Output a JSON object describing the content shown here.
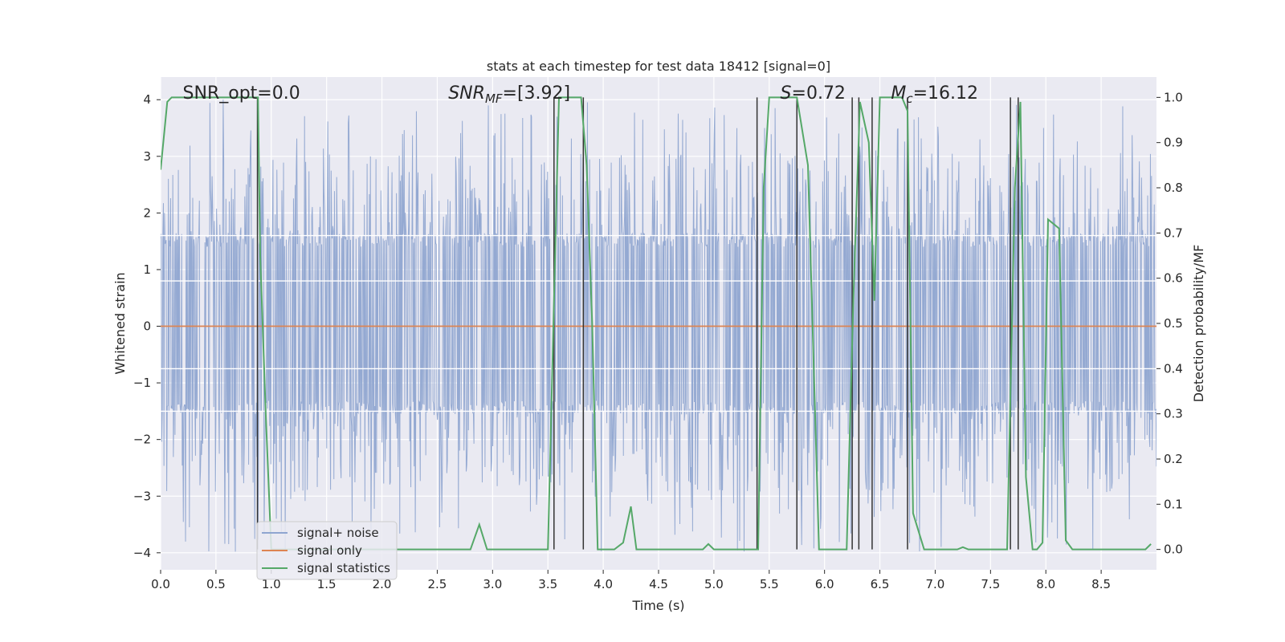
{
  "chart_data": {
    "type": "line",
    "title": "stats at each timestep for test data 18412 [signal=0]",
    "xlabel": "Time (s)",
    "ylabel": "Whitened strain",
    "y2label": "Detection probability/MF",
    "xlim": [
      0,
      9
    ],
    "ylim": [
      -4.3,
      4.4
    ],
    "y2lim": [
      -0.045,
      1.045
    ],
    "xticks": [
      0.0,
      0.5,
      1.0,
      1.5,
      2.0,
      2.5,
      3.0,
      3.5,
      4.0,
      4.5,
      5.0,
      5.5,
      6.0,
      6.5,
      7.0,
      7.5,
      8.0,
      8.5
    ],
    "xtick_labels": [
      "0.0",
      "0.5",
      "1.0",
      "1.5",
      "2.0",
      "2.5",
      "3.0",
      "3.5",
      "4.0",
      "4.5",
      "5.0",
      "5.5",
      "6.0",
      "6.5",
      "7.0",
      "7.5",
      "8.0",
      "8.5"
    ],
    "yticks": [
      -4,
      -3,
      -2,
      -1,
      0,
      1,
      2,
      3,
      4
    ],
    "ytick_labels": [
      "−4",
      "−3",
      "−2",
      "−1",
      "0",
      "1",
      "2",
      "3",
      "4"
    ],
    "y2ticks": [
      0.0,
      0.1,
      0.2,
      0.3,
      0.4,
      0.5,
      0.6,
      0.7,
      0.8,
      0.9,
      1.0
    ],
    "y2tick_labels": [
      "0.0",
      "0.1",
      "0.2",
      "0.3",
      "0.4",
      "0.5",
      "0.6",
      "0.7",
      "0.8",
      "0.9",
      "1.0"
    ],
    "grid": true,
    "legend_position": "lower-left",
    "annotations": [
      {
        "text": "SNR_opt=0.0",
        "x": 0.2,
        "y": 4.0
      },
      {
        "text": "SNR_MF=[3.92]",
        "x": 2.6,
        "y": 4.0
      },
      {
        "text": "S=0.72",
        "x": 5.6,
        "y": 4.0
      },
      {
        "text": "M_c=16.12",
        "x": 6.6,
        "y": 4.0
      }
    ],
    "series": [
      {
        "name": "signal+ noise",
        "color": "#8fa5d0",
        "sample_count": 1800,
        "core_amplitude": [
          -1.55,
          1.65
        ],
        "envelope_amplitude": [
          -3.0,
          3.0
        ],
        "peak_amplitude": [
          -3.9,
          4.0
        ]
      },
      {
        "name": "signal only",
        "color": "#dd8452",
        "x": [
          0,
          9
        ],
        "y": [
          0,
          0
        ]
      },
      {
        "name": "signal statistics",
        "color": "#55a868",
        "x": [
          0.0,
          0.06,
          0.1,
          0.2,
          0.5,
          0.88,
          0.9,
          0.95,
          1.0,
          2.0,
          2.5,
          2.8,
          2.88,
          2.95,
          3.0,
          3.3,
          3.5,
          3.55,
          3.6,
          3.65,
          3.8,
          3.85,
          3.9,
          3.95,
          4.1,
          4.18,
          4.25,
          4.3,
          4.5,
          4.8,
          4.9,
          4.95,
          5.0,
          5.2,
          5.4,
          5.45,
          5.5,
          5.75,
          5.85,
          5.95,
          6.2,
          6.26,
          6.32,
          6.4,
          6.45,
          6.5,
          6.6,
          6.7,
          6.75,
          6.8,
          6.9,
          7.2,
          7.25,
          7.3,
          7.6,
          7.65,
          7.72,
          7.77,
          7.82,
          7.88,
          7.92,
          7.97,
          8.02,
          8.07,
          8.12,
          8.18,
          8.24,
          8.3,
          8.5,
          8.9,
          8.95
        ],
        "y": [
          0.84,
          0.99,
          1.0,
          1.0,
          1.0,
          1.0,
          0.65,
          0.3,
          0.0,
          0.0,
          0.0,
          0.0,
          0.055,
          0.0,
          0.0,
          0.0,
          0.0,
          0.5,
          1.0,
          1.0,
          1.0,
          0.85,
          0.5,
          0.0,
          0.0,
          0.015,
          0.095,
          0.0,
          0.0,
          0.0,
          0.0,
          0.012,
          0.0,
          0.0,
          0.0,
          0.8,
          1.0,
          1.0,
          0.85,
          0.0,
          0.0,
          0.55,
          0.99,
          0.9,
          0.55,
          1.0,
          1.0,
          1.0,
          0.97,
          0.08,
          0.0,
          0.0,
          0.005,
          0.0,
          0.0,
          0.0,
          0.8,
          0.99,
          0.16,
          0.0,
          0.0,
          0.015,
          0.73,
          0.72,
          0.71,
          0.02,
          0.0,
          0.0,
          0.0,
          0.0,
          0.012
        ]
      }
    ],
    "vertical_markers": {
      "color": "#333333",
      "x": [
        0.875,
        3.555,
        3.82,
        5.39,
        5.75,
        6.25,
        6.31,
        6.43,
        6.75,
        7.68,
        7.75
      ],
      "y2_range": [
        0.0,
        1.0
      ]
    },
    "horizontal_guides": {
      "color": "#ffffff",
      "y": [
        1.6,
        0.8,
        -0.75,
        -1.5
      ]
    }
  }
}
